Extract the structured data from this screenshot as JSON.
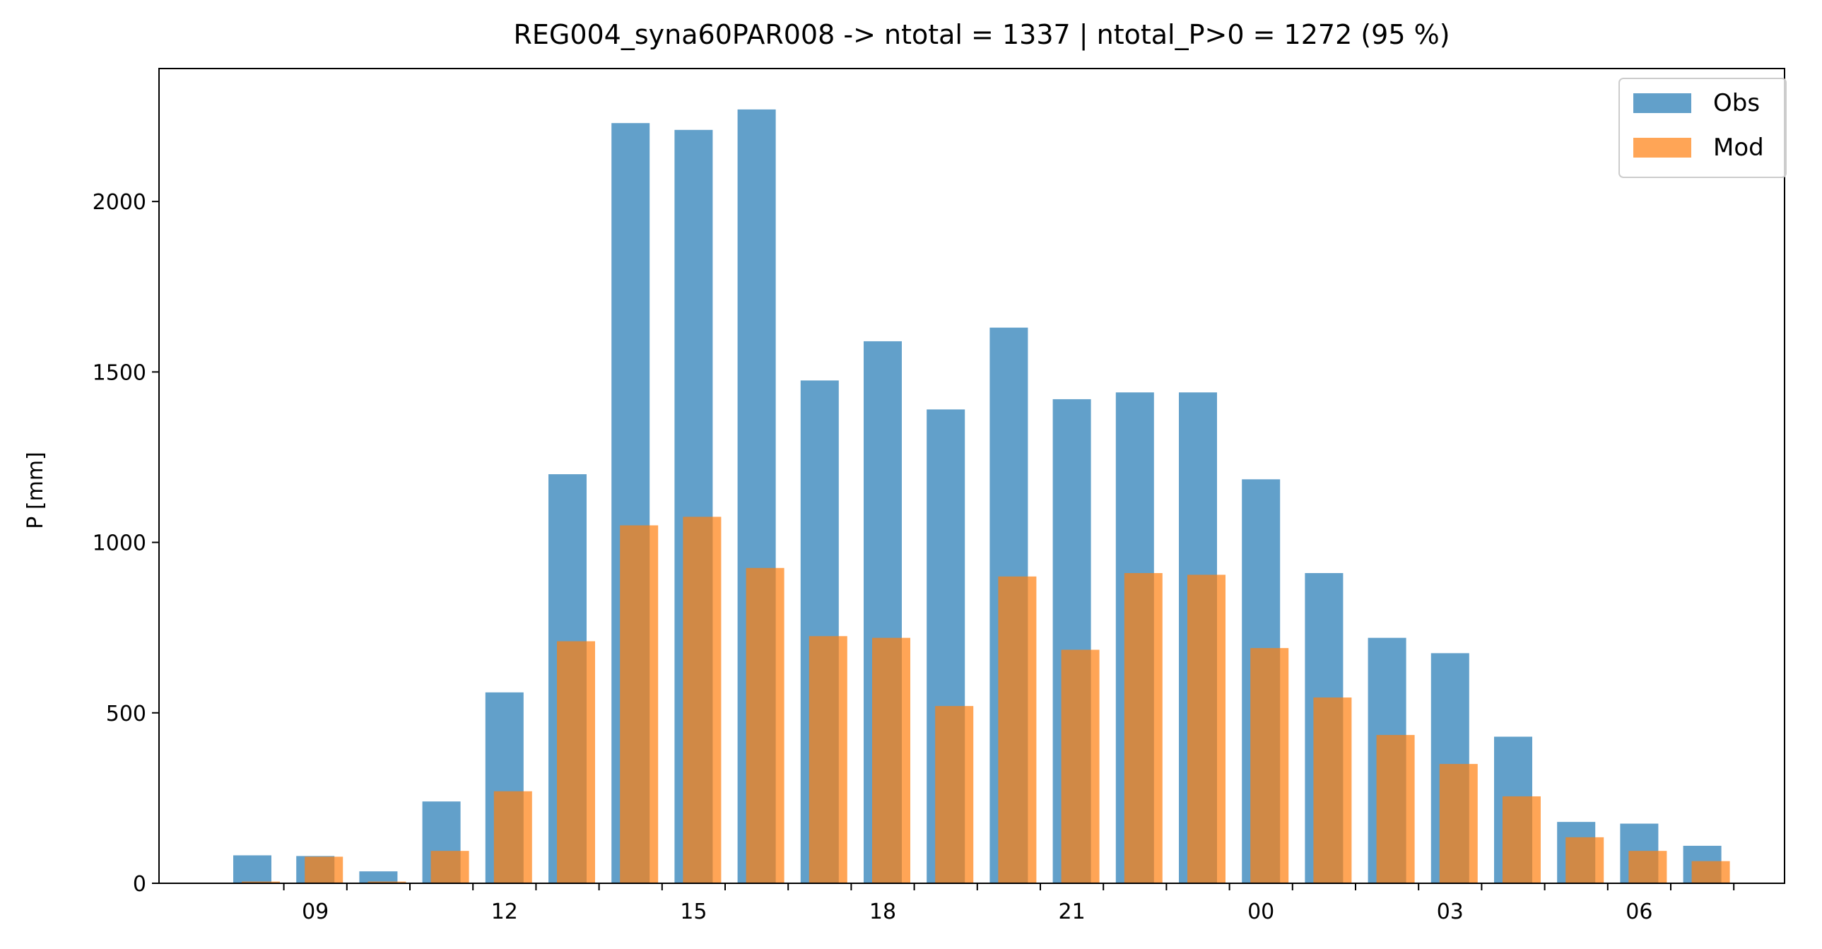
{
  "chart_data": {
    "type": "bar",
    "title": "REG004_syna60PAR008 -> ntotal = 1337 | ntotal_P>0 = 1272 (95 %)",
    "xlabel": "",
    "ylabel": "P [mm]",
    "x_tick_labels": [
      "09",
      "12",
      "15",
      "18",
      "21",
      "00",
      "03",
      "06"
    ],
    "categories": [
      "08",
      "09",
      "10",
      "11",
      "12",
      "13",
      "14",
      "15",
      "16",
      "17",
      "18",
      "19",
      "20",
      "21",
      "22",
      "23",
      "00",
      "01",
      "02",
      "03",
      "04",
      "05",
      "06",
      "07"
    ],
    "series": [
      {
        "name": "Obs",
        "color": "#1f77b4",
        "values": [
          82,
          80,
          35,
          240,
          560,
          1200,
          2230,
          2210,
          2270,
          1475,
          1590,
          1390,
          1630,
          1420,
          1440,
          1440,
          1185,
          910,
          720,
          675,
          430,
          180,
          175,
          110
        ]
      },
      {
        "name": "Mod",
        "color": "#ff7f0e",
        "values": [
          5,
          78,
          5,
          95,
          270,
          710,
          1050,
          1075,
          925,
          725,
          720,
          520,
          900,
          685,
          910,
          905,
          690,
          545,
          435,
          350,
          255,
          135,
          95,
          65
        ]
      }
    ],
    "ylim": [
      0,
      2390
    ],
    "yticks": [
      0,
      500,
      1000,
      1500,
      2000
    ],
    "legend": "top-right",
    "grid": false
  }
}
